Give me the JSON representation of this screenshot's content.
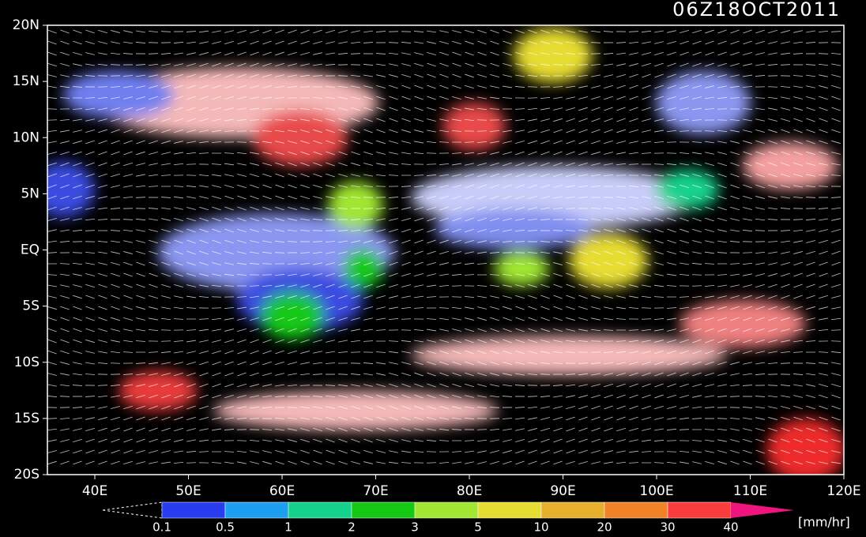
{
  "title": "06Z18OCT2011",
  "lat_labels": [
    "20N",
    "15N",
    "10N",
    "5N",
    "EQ",
    "5S",
    "10S",
    "15S",
    "20S"
  ],
  "lon_labels": [
    "40E",
    "50E",
    "60E",
    "70E",
    "80E",
    "90E",
    "100E",
    "110E",
    "120E"
  ],
  "colorbar": {
    "levels": [
      0.1,
      0.5,
      1,
      2,
      3,
      5,
      10,
      20,
      30,
      40
    ],
    "colors": [
      "#2a3cf0",
      "#1ea0f0",
      "#14d28c",
      "#14c814",
      "#a0e632",
      "#e6dc32",
      "#e6af2d",
      "#f08228",
      "#fa3c3c",
      "#f0147f"
    ],
    "unit": "[mm/hr]"
  }
}
